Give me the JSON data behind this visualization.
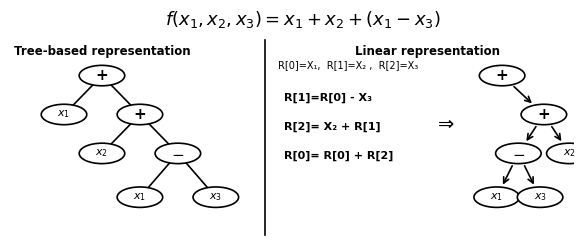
{
  "title": "$f(x_1,x_2,x_3)=x_1+x_2+(x_1-x_3)$",
  "left_label": "Tree-based representation",
  "right_label": "Linear representation",
  "bg_color": "#ffffff",
  "linear_text_line0": "R[0]=X₁,  R[1]=X₂ ,  R[2]=X₃",
  "linear_text_line1": "R[1]=R[0] - X₃",
  "linear_text_line2": "R[2]= X₂ + R[1]",
  "linear_text_line3": "R[0]= R[0] + R[2]"
}
